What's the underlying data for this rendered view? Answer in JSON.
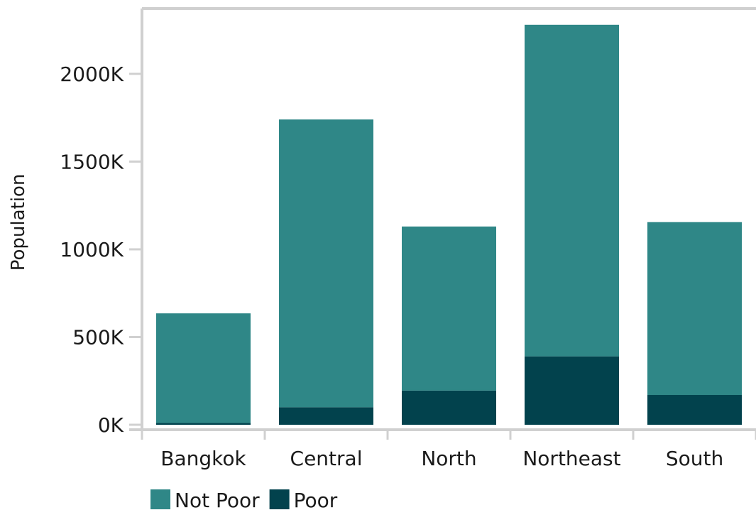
{
  "chart_data": {
    "type": "bar",
    "stacked": true,
    "categories": [
      "Bangkok",
      "Central",
      "North",
      "Northeast",
      "South"
    ],
    "series": [
      {
        "name": "Poor",
        "values": [
          10,
          100,
          195,
          390,
          170
        ],
        "color": "#02424d"
      },
      {
        "name": "Not Poor",
        "values": [
          625,
          1640,
          935,
          1890,
          985
        ],
        "color": "#2f8787"
      }
    ],
    "ylabel": "Population",
    "ylim": [
      0,
      2500
    ],
    "y_ticks": [
      {
        "value": 0,
        "label": "0K"
      },
      {
        "value": 500,
        "label": "500K"
      },
      {
        "value": 1000,
        "label": "1000K"
      },
      {
        "value": 1500,
        "label": "1500K"
      },
      {
        "value": 2000,
        "label": "2000K"
      }
    ],
    "legend": {
      "position": "bottom-left",
      "entries": [
        {
          "label": "Not Poor",
          "color": "#2f8787"
        },
        {
          "label": "Poor",
          "color": "#02424d"
        }
      ]
    },
    "axis_color": "#d0d0d0",
    "grid": false
  }
}
